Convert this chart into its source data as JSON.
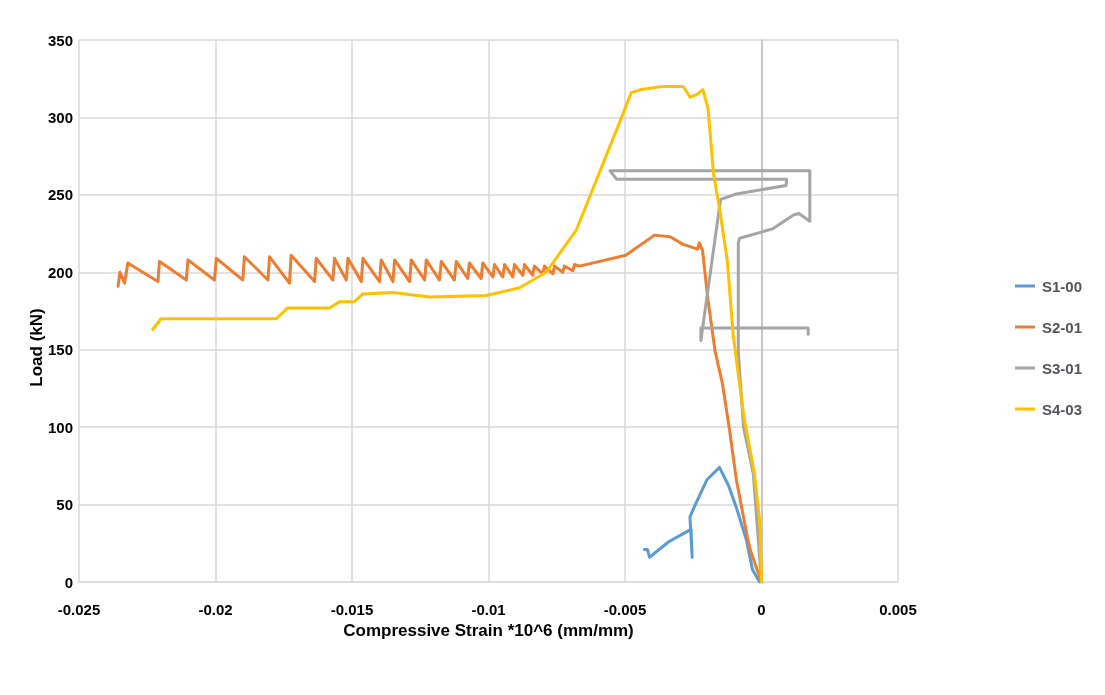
{
  "chart_data": {
    "type": "line",
    "xlabel": "Compressive Strain *10^6 (mm/mm)",
    "ylabel": "Load (kN)",
    "xlim": [
      -0.025,
      0.005
    ],
    "xticks": [
      -0.025,
      -0.02,
      -0.015,
      -0.01,
      -0.005,
      0,
      0.005
    ],
    "ylim": [
      0,
      350
    ],
    "yticks": [
      0,
      50,
      100,
      150,
      200,
      250,
      300,
      350
    ],
    "grid": true,
    "legend": "right",
    "marker": "none",
    "line_style": "solid",
    "series": [
      {
        "name": "S1-00",
        "color": "#5b9bd5",
        "x": [
          -0.00429,
          -0.00418,
          -0.0041,
          -0.0034,
          -0.00258,
          -0.00254,
          -0.00262,
          -0.00245,
          -0.002,
          -0.00154,
          -0.0012,
          -0.00092,
          -0.00055,
          -0.00033,
          -7e-05
        ],
        "values": [
          21,
          21,
          16,
          26,
          34,
          16,
          42,
          49,
          66,
          74,
          62,
          48,
          27,
          8,
          0
        ]
      },
      {
        "name": "S2-01",
        "color": "#ed7d31",
        "x": [
          -0.02357,
          -0.0235,
          -0.02333,
          -0.02321,
          -0.02211,
          -0.02205,
          -0.02107,
          -0.02101,
          -0.02004,
          -0.01997,
          -0.019,
          -0.01894,
          -0.01808,
          -0.01802,
          -0.01729,
          -0.01723,
          -0.01637,
          -0.01631,
          -0.0157,
          -0.01564,
          -0.01521,
          -0.01515,
          -0.01466,
          -0.0146,
          -0.01399,
          -0.01393,
          -0.0135,
          -0.01344,
          -0.01289,
          -0.01283,
          -0.01234,
          -0.01228,
          -0.0118,
          -0.01173,
          -0.01125,
          -0.01118,
          -0.01076,
          -0.0107,
          -0.01027,
          -0.01021,
          -0.00984,
          -0.00978,
          -0.00948,
          -0.00941,
          -0.00911,
          -0.00905,
          -0.00874,
          -0.00868,
          -0.00838,
          -0.00832,
          -0.00801,
          -0.00795,
          -0.00764,
          -0.00758,
          -0.00728,
          -0.00722,
          -0.00691,
          -0.00685,
          -0.00667,
          -0.00497,
          -0.00392,
          -0.00335,
          -0.00287,
          -0.00234,
          -0.00228,
          -0.00216,
          -0.00196,
          -0.0017,
          -0.00143,
          -0.00117,
          -0.00092,
          -0.00052,
          -0.0004,
          -0.0002,
          0
        ],
        "values": [
          191,
          200,
          193,
          206,
          194,
          207,
          195,
          208,
          195,
          209,
          195,
          210,
          195,
          210,
          193,
          211,
          194,
          209,
          195,
          209,
          195,
          209,
          194,
          209,
          194,
          208,
          194,
          208,
          194,
          208,
          195,
          208,
          195,
          207,
          195,
          207,
          196,
          206,
          196,
          206,
          197,
          205,
          197,
          205,
          197,
          205,
          198,
          205,
          198,
          204,
          199,
          204,
          199,
          204,
          200,
          204,
          201,
          205,
          204,
          211,
          224,
          223,
          218,
          215,
          219,
          214,
          182,
          149,
          128,
          98,
          66,
          29,
          20,
          10,
          0
        ]
      },
      {
        "name": "S3-01",
        "color": "#a5a5a5",
        "x": [
          0,
          -0.0003,
          -0.00066,
          -0.00085,
          -0.00085,
          -0.0008,
          -0.0002,
          0.0004,
          0.00117,
          0.00137,
          0.00177,
          0.00177,
          -0.00555,
          -0.0053,
          0.00092,
          0.0009,
          -0.00092,
          -0.0015,
          -0.00222,
          -0.00222,
          0.00171,
          0.00171
        ],
        "values": [
          0,
          70,
          100,
          149,
          219,
          222,
          225,
          228,
          237,
          238,
          233,
          265.5,
          265.5,
          260,
          260,
          256,
          250.6,
          247,
          156,
          164,
          164,
          160
        ]
      },
      {
        "name": "S4-03",
        "color": "#ffc000",
        "x": [
          -0.0223,
          -0.022,
          -0.02047,
          -0.01778,
          -0.01735,
          -0.01582,
          -0.01546,
          -0.01491,
          -0.0146,
          -0.0135,
          -0.01216,
          -0.01008,
          -0.00886,
          -0.00789,
          -0.00679,
          -0.00524,
          -0.00477,
          -0.0044,
          -0.00366,
          -0.00287,
          -0.00261,
          -0.00235,
          -0.00215,
          -0.00196,
          -0.00176,
          -0.0015,
          -0.00125,
          -0.00104,
          -0.00065,
          -0.00026,
          -6e-05,
          0
        ],
        "values": [
          163,
          170,
          170,
          170,
          177,
          177,
          181,
          181,
          186,
          187,
          184,
          185,
          190,
          200,
          227,
          295,
          316,
          318,
          320,
          320,
          313,
          315,
          318,
          306,
          264,
          237,
          207,
          160,
          107,
          70,
          38,
          0
        ]
      }
    ]
  }
}
